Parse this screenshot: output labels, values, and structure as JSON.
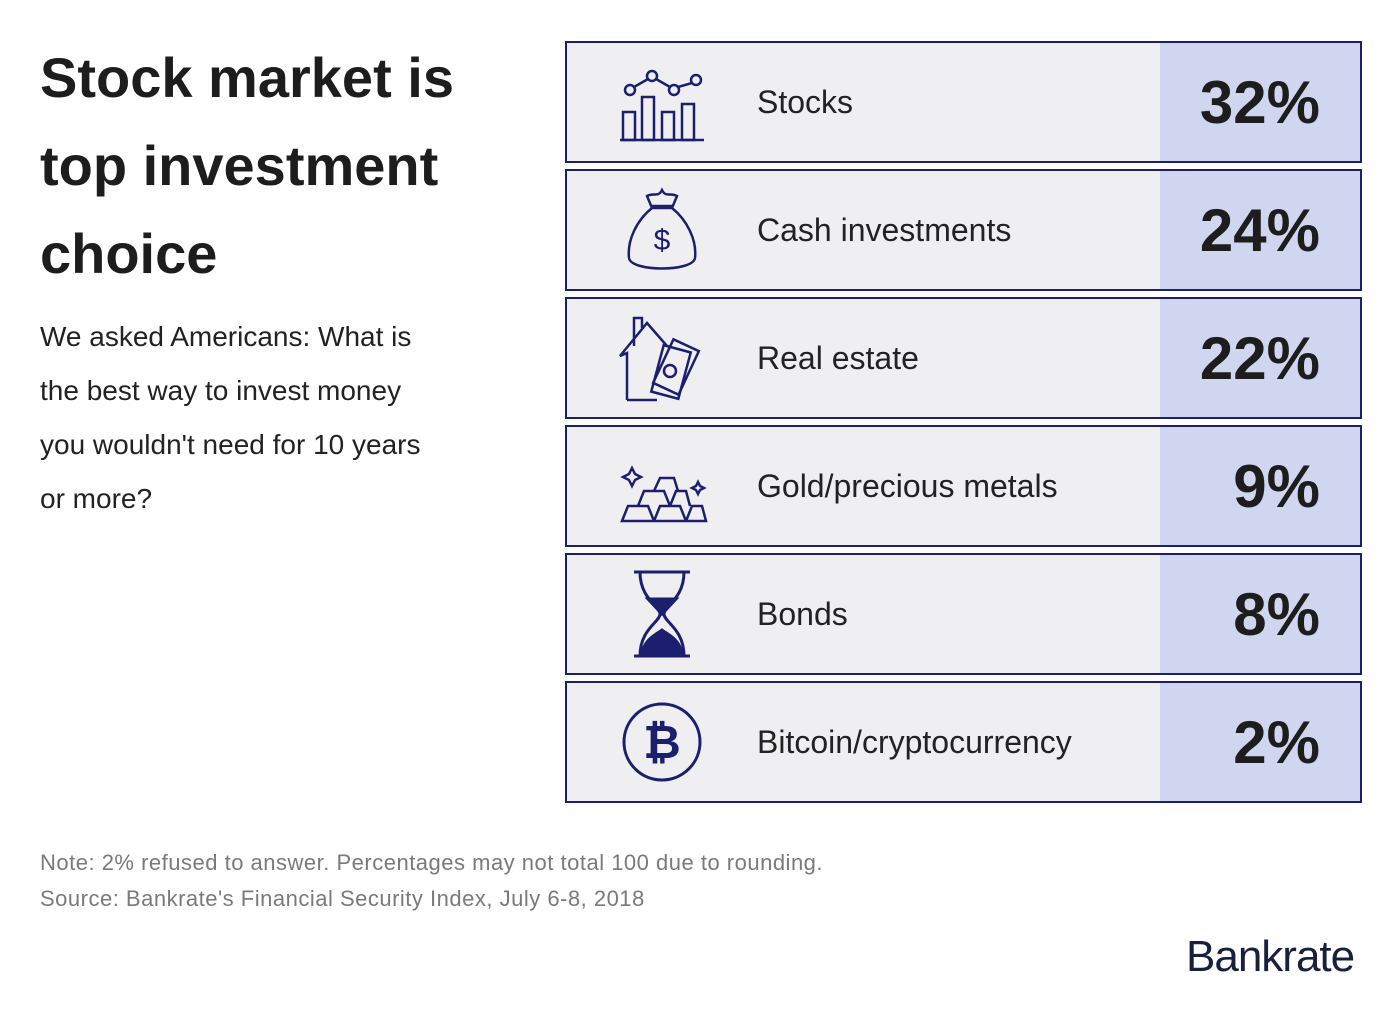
{
  "title": "Stock market is top investment choice",
  "subtitle": "We asked Americans: What is the best way to invest money you wouldn't need for 10 years or more?",
  "note": "Note: 2% refused to answer. Percentages may not total 100 due to rounding.",
  "source": "Source: Bankrate's Financial Security Index, July 6-8, 2018",
  "logo": "Bankrate",
  "colors": {
    "border": "#1b1f6e",
    "row_bg": "#efeff2",
    "value_bg": "#d0d6f0",
    "icon": "#1b1f6e"
  },
  "chart_data": {
    "type": "table",
    "title": "Stock market is top investment choice",
    "categories": [
      "Stocks",
      "Cash investments",
      "Real estate",
      "Gold/precious metals",
      "Bonds",
      "Bitcoin/cryptocurrency"
    ],
    "values": [
      32,
      24,
      22,
      9,
      8,
      2
    ],
    "value_labels": [
      "32%",
      "24%",
      "22%",
      "9%",
      "8%",
      "2%"
    ],
    "icons": [
      "stock-chart-icon",
      "money-bag-icon",
      "house-money-icon",
      "gold-bars-icon",
      "hourglass-icon",
      "bitcoin-icon"
    ]
  }
}
